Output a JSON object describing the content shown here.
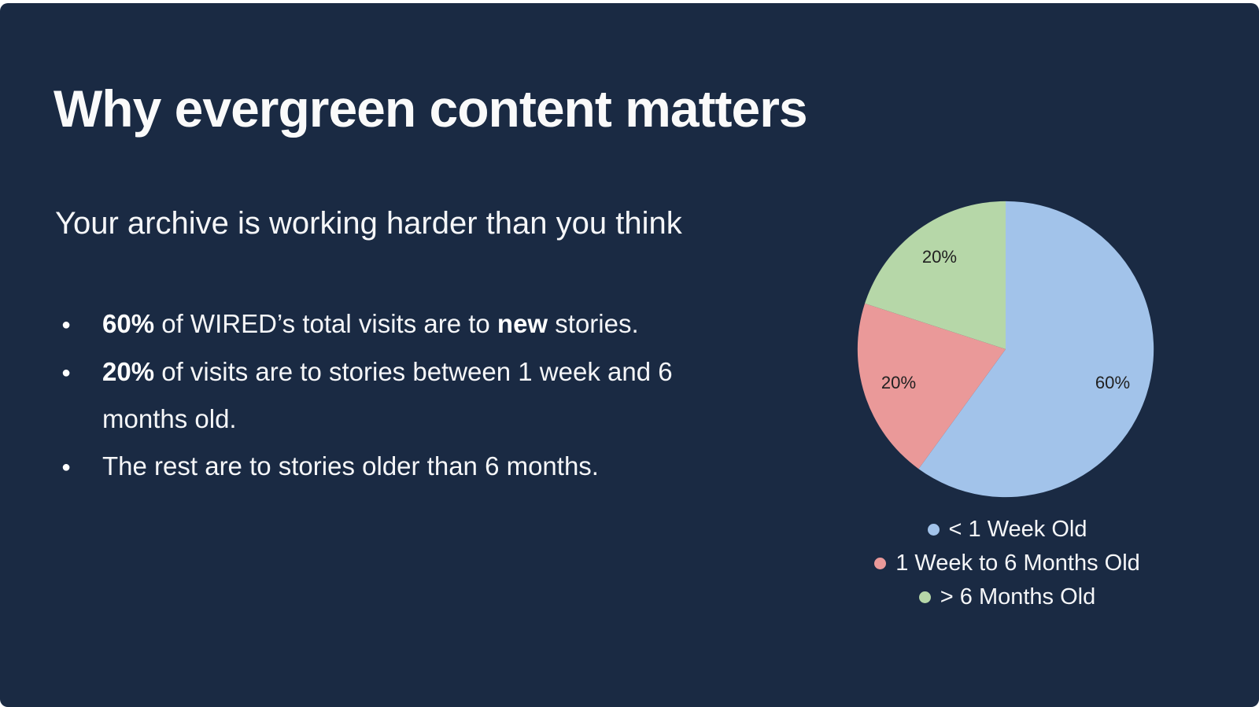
{
  "slide": {
    "title": "Why evergreen content matters",
    "subtitle": "Your archive is working harder than you think",
    "bullets": [
      {
        "segments": [
          {
            "text": "60%",
            "bold": true
          },
          {
            "text": " of WIRED’s total visits are to ",
            "bold": false
          },
          {
            "text": "new",
            "bold": true
          },
          {
            "text": " stories.",
            "bold": false
          }
        ]
      },
      {
        "segments": [
          {
            "text": "20%",
            "bold": true
          },
          {
            "text": " of visits are to stories between 1 week and 6 months old.",
            "bold": false
          }
        ]
      },
      {
        "segments": [
          {
            "text": "The rest are to stories older than 6 months.",
            "bold": false
          }
        ]
      }
    ]
  },
  "chart_data": {
    "type": "pie",
    "title": "",
    "labels": [
      "< 1 Week Old",
      "1 Week to 6 Months Old",
      "> 6 Months Old"
    ],
    "values": [
      60,
      20,
      20
    ],
    "slice_labels": [
      "60%",
      "20%",
      "20%"
    ],
    "colors": [
      "#a2c3ea",
      "#ea9999",
      "#b6d7a8"
    ],
    "start_angle_deg": 0,
    "direction": "clockwise",
    "legend_position": "bottom-center"
  },
  "colors": {
    "background": "#1a2a43",
    "text": "#ffffff",
    "slice_label_text": "#212121"
  }
}
